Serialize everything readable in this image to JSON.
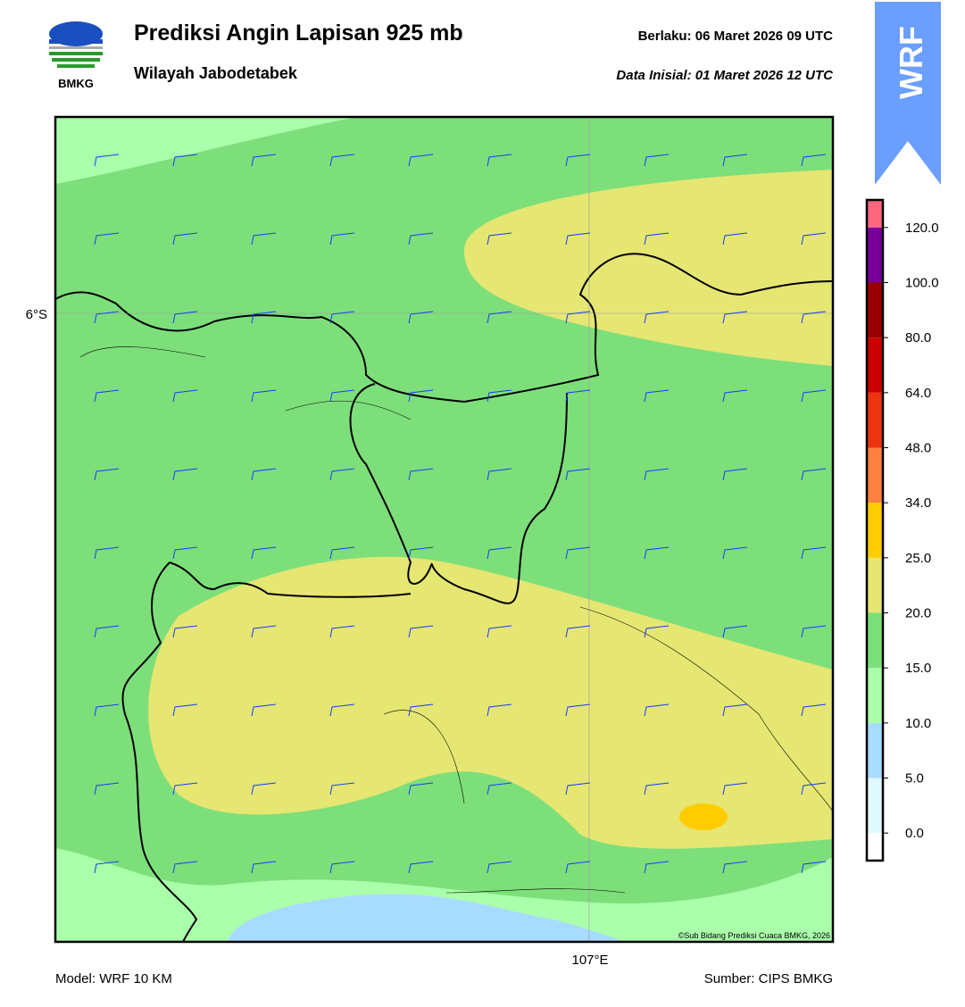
{
  "header": {
    "logo_text": "BMKG",
    "title": "Prediksi Angin Lapisan 925 mb",
    "subtitle": "Wilayah Jabodetabek",
    "valid_label": "Berlaku:  06 Maret 2026 09 UTC",
    "init_label": "Data Inisial:  01 Maret 2026 12 UTC",
    "badge": "WRF"
  },
  "map": {
    "lat_label": "6°S",
    "lon_label": "107°E",
    "credit": "©Sub Bidang Prediksi Cuaca BMKG, 2026"
  },
  "colorbar": {
    "labels": [
      "0.0",
      "5.0",
      "10.0",
      "15.0",
      "20.0",
      "25.0",
      "34.0",
      "48.0",
      "64.0",
      "80.0",
      "100.0",
      "120.0"
    ],
    "colors": [
      "#ffffff",
      "#e0f8ff",
      "#a8dcff",
      "#aaffaa",
      "#7ddf7a",
      "#e6e673",
      "#ffcc00",
      "#ff8040",
      "#ee3311",
      "#cc0000",
      "#990000",
      "#770099",
      "#ff6680"
    ]
  },
  "footer": {
    "model": "Model: WRF 10 KM",
    "source": "Sumber: CIPS BMKG"
  }
}
